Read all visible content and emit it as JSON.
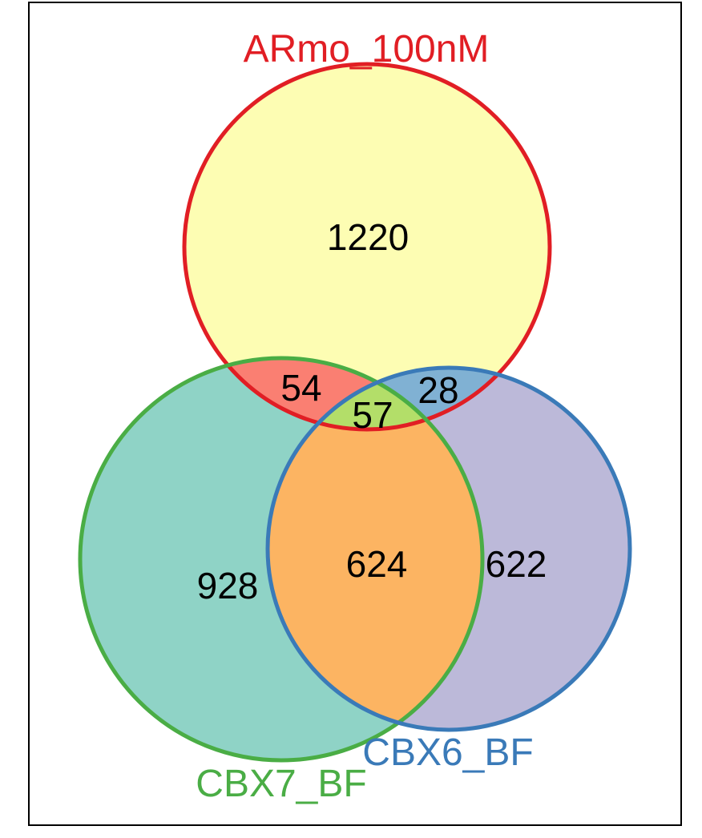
{
  "diagram": {
    "type": "venn-3",
    "sets": [
      {
        "id": "armo",
        "name": "ARmo_100nM",
        "fill": "#fdfdb3",
        "stroke": "#e11e24"
      },
      {
        "id": "cbx7",
        "name": "CBX7_BF",
        "fill": "#8fd3c6",
        "stroke": "#4aad45"
      },
      {
        "id": "cbx6",
        "name": "CBX6_BF",
        "fill": "#bcb9d9",
        "stroke": "#3a7ab8"
      }
    ],
    "regions": {
      "armo_only": "1220",
      "armo_cbx7": "54",
      "armo_cbx6": "28",
      "all_three": "57",
      "cbx7_cbx6": "624",
      "cbx7_only": "928",
      "cbx6_only": "622"
    },
    "overlap_colors": {
      "armo_cbx7": "#fa7f72",
      "armo_cbx6": "#80b1d3",
      "all_three": "#b3de69",
      "cbx7_cbx6": "#fcb462"
    },
    "frame_color": "#000000"
  }
}
